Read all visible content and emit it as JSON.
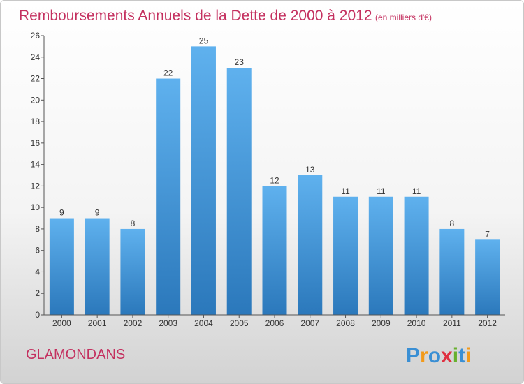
{
  "chart_data": {
    "type": "bar",
    "title": "Remboursements Annuels de la Dette de 2000 à 2012",
    "subtitle": "(en milliers d'€)",
    "categories": [
      "2000",
      "2001",
      "2002",
      "2003",
      "2004",
      "2005",
      "2006",
      "2007",
      "2008",
      "2009",
      "2010",
      "2011",
      "2012"
    ],
    "values": [
      9,
      9,
      8,
      22,
      25,
      23,
      12,
      13,
      11,
      11,
      11,
      8,
      7
    ],
    "ylim": [
      0,
      26
    ],
    "yticks": [
      0,
      2,
      4,
      6,
      8,
      10,
      12,
      14,
      16,
      18,
      20,
      22,
      24,
      26
    ],
    "xlabel": "",
    "ylabel": "",
    "grid": false,
    "bar_color": "#3d8fd6"
  },
  "footer": {
    "place_name": "GLAMONDANS",
    "logo_letters": [
      "P",
      "r",
      "o",
      "x",
      "i",
      "t",
      "i"
    ],
    "logo_colors": [
      "#3a8fd4",
      "#f29a1a",
      "#3a8fd4",
      "#e03040",
      "#68b02e",
      "#3a8fd4",
      "#f29a1a"
    ]
  },
  "colors": {
    "accent": "#c4305f"
  }
}
